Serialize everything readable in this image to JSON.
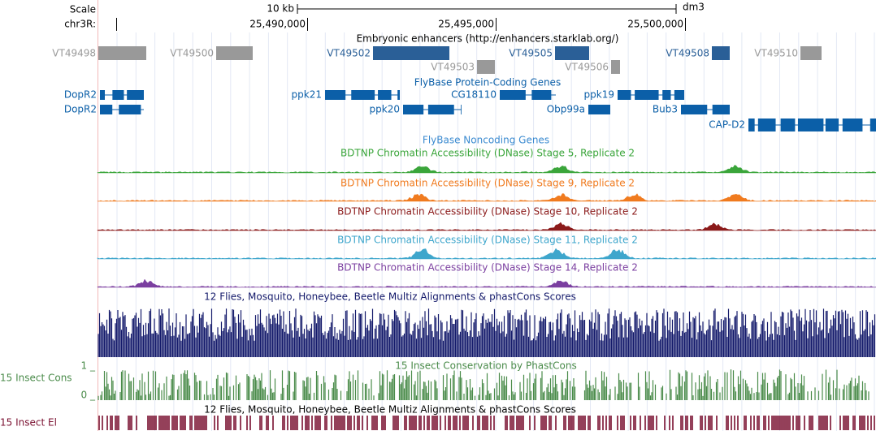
{
  "ruler": {
    "scale_label": "Scale",
    "size_label": "10 kb",
    "assembly": "dm3",
    "chrom": "chr3R:",
    "positions": [
      "25,490,000",
      "25,495,000",
      "25,500,000"
    ]
  },
  "enhancers": {
    "title": "Embryonic enhancers (http://enhancers.starklab.org/)",
    "items": [
      {
        "label": "VT49498",
        "color": "#999999"
      },
      {
        "label": "VT49500",
        "color": "#999999"
      },
      {
        "label": "VT49502",
        "color": "#2a5f97"
      },
      {
        "label": "VT49503",
        "color": "#999999"
      },
      {
        "label": "VT49505",
        "color": "#2a5f97"
      },
      {
        "label": "VT49506",
        "color": "#999999"
      },
      {
        "label": "VT49508",
        "color": "#2a5f97"
      },
      {
        "label": "VT49510",
        "color": "#999999"
      }
    ]
  },
  "genes": {
    "title": "FlyBase Protein-Coding Genes",
    "color": "#0b5fa8",
    "items": [
      "DopR2",
      "DopR2",
      "ppk21",
      "ppk20",
      "CG18110",
      "Obp99a",
      "ppk19",
      "Bub3",
      "CAP-D2"
    ]
  },
  "noncoding": {
    "title": "FlyBase Noncoding Genes"
  },
  "dnase": [
    {
      "title": "BDTNP Chromatin Accessibility (DNase) Stage 5, Replicate 2",
      "color": "#3aa53a"
    },
    {
      "title": "BDTNP Chromatin Accessibility (DNase) Stage 9, Replicate 2",
      "color": "#f07b1f"
    },
    {
      "title": "BDTNP Chromatin Accessibility (DNase) Stage 10, Replicate 2",
      "color": "#8b1a1a"
    },
    {
      "title": "BDTNP Chromatin Accessibility (DNase) Stage 11, Replicate 2",
      "color": "#3ea6cc"
    },
    {
      "title": "BDTNP Chromatin Accessibility (DNase) Stage 14, Replicate 2",
      "color": "#7b3fa0"
    }
  ],
  "multiz": {
    "title": "12 Flies, Mosquito, Honeybee, Beetle Multiz Alignments & phastCons Scores",
    "color": "#141a6b"
  },
  "phastcons": {
    "title": "15 Insect Conservation by PhastCons",
    "side_label": "15 Insect Cons",
    "max_label": "1 _",
    "min_label": "0 _",
    "color": "#4a8b4a"
  },
  "elements": {
    "title": "12 Flies, Mosquito, Honeybee, Beetle Multiz Alignments & phastCons Scores",
    "side_label": "15 Insect El",
    "color": "#7a1030"
  }
}
